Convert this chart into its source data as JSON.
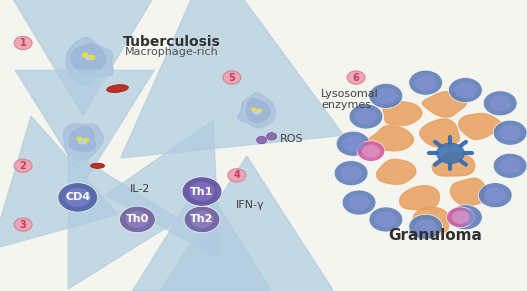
{
  "title": "Tuberculosis",
  "subtitle": "Macrophage-rich",
  "granuloma_label": "Granuloma",
  "bg_color": "#f5f5f0",
  "macrophage_body_color": "#7080c0",
  "macrophage_dark": "#5060a0",
  "macrophage_light": "#90a0d0",
  "mycobacterium_color": "#c03020",
  "cd4_color": "#5060a8",
  "th1_color": "#7060a0",
  "th0_color": "#8070b0",
  "th2_color": "#8070b0",
  "arrow_color": "#a0c0d8",
  "step_circle_color": "#f0a0b0",
  "step_text_color": "#c04060",
  "lysosomal_enzymes_arrow": "#a0c0d8",
  "granuloma_blue_cell_color": "#7090c0",
  "granuloma_orange_cell_color": "#e8a060",
  "granuloma_pink_cell_color": "#d060a0",
  "granuloma_dendritic_color": "#4070b0",
  "steps": [
    "1",
    "2",
    "3",
    "4",
    "5",
    "6"
  ],
  "labels": {
    "IL2": "IL-2",
    "IFNg": "IFN-γ",
    "ROS": "ROS",
    "lysosomal": "Lysosomal\nenzymes",
    "CD4": "CD4",
    "Th1": "Th1",
    "Th0": "Th0",
    "Th2": "Th2"
  }
}
